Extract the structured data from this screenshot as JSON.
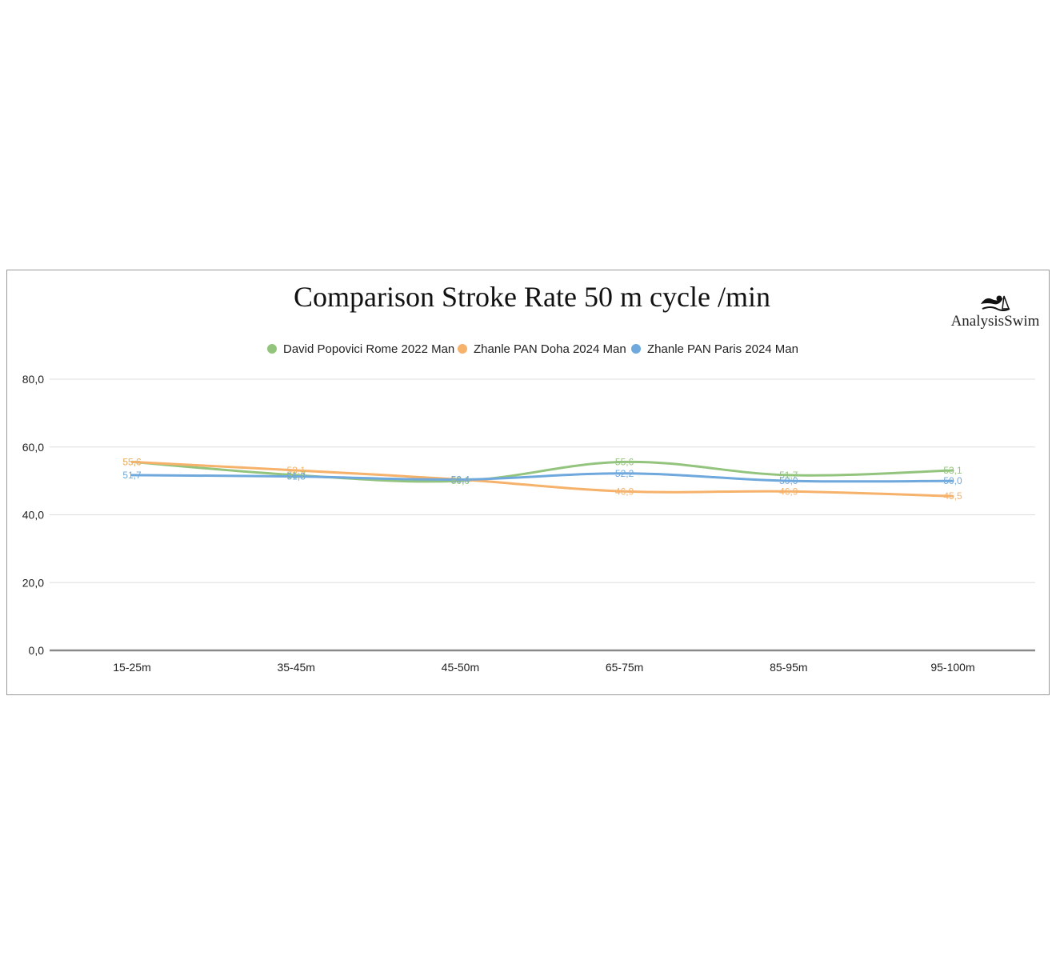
{
  "chart_data": {
    "type": "line",
    "title": "Comparison Stroke Rate 50 m cycle /min",
    "categories": [
      "15-25m",
      "35-45m",
      "45-50m",
      "65-75m",
      "85-95m",
      "95-100m"
    ],
    "ylim": [
      0,
      80
    ],
    "yticks": [
      "0,0",
      "20,0",
      "40,0",
      "60,0",
      "80,0"
    ],
    "ytick_values": [
      0,
      20,
      40,
      60,
      80
    ],
    "grid": true,
    "legend_position": "top",
    "series": [
      {
        "name": "David Popovici Rome 2022 Man",
        "color": "#93c47d",
        "values": [
          55.6,
          51.7,
          50.0,
          55.6,
          51.7,
          53.1
        ],
        "labels": [
          "55,6",
          "51,7",
          "50,0",
          "55,6",
          "51,7",
          "53,1"
        ]
      },
      {
        "name": "Zhanle PAN Doha 2024 Man",
        "color": "#f6b26b",
        "values": [
          55.6,
          53.1,
          50.4,
          46.9,
          46.9,
          45.5
        ],
        "labels": [
          "55,6",
          "53,1",
          "50,4",
          "46,9",
          "46,9",
          "45,5"
        ]
      },
      {
        "name": "Zhanle PAN Paris 2024 Man",
        "color": "#6fa8dc",
        "values": [
          51.7,
          51.3,
          50.4,
          52.2,
          50.0,
          50.0
        ],
        "labels": [
          "51,7",
          "51,3",
          "50,4",
          "52,2",
          "50,0",
          "50,0"
        ]
      }
    ]
  },
  "logo": {
    "text": "AnalysisSwim",
    "icon": "swimmer-icon"
  }
}
